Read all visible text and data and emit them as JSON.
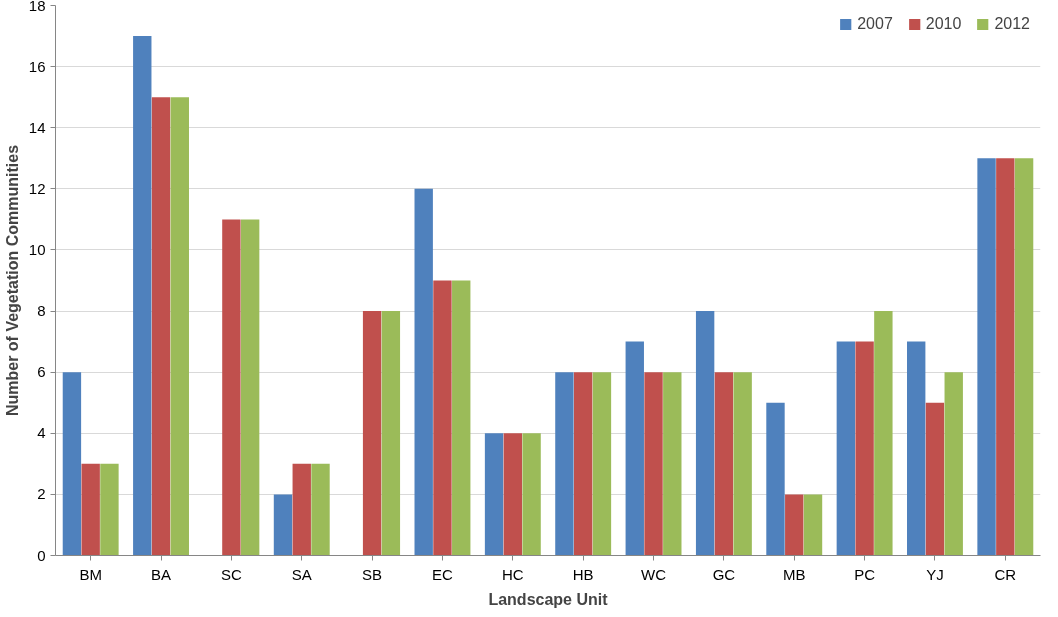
{
  "chart_data": {
    "type": "bar",
    "xlabel": "Landscape Unit",
    "ylabel": "Number of Vegetation Communities",
    "categories": [
      "BM",
      "BA",
      "SC",
      "SA",
      "SB",
      "EC",
      "HC",
      "HB",
      "WC",
      "GC",
      "MB",
      "PC",
      "YJ",
      "CR"
    ],
    "series": [
      {
        "name": "2007",
        "color": "#4f81bd",
        "values": [
          6,
          17,
          0,
          2,
          0,
          12,
          4,
          6,
          7,
          8,
          5,
          7,
          7,
          13
        ]
      },
      {
        "name": "2010",
        "color": "#c0504d",
        "values": [
          3,
          15,
          11,
          3,
          8,
          9,
          4,
          6,
          6,
          6,
          2,
          7,
          5,
          13
        ]
      },
      {
        "name": "2012",
        "color": "#9bbb59",
        "values": [
          3,
          15,
          11,
          3,
          8,
          9,
          4,
          6,
          6,
          6,
          2,
          8,
          6,
          13
        ]
      }
    ],
    "ylim": [
      0,
      18
    ],
    "yticks": [
      0,
      2,
      4,
      6,
      8,
      10,
      12,
      14,
      16,
      18
    ],
    "grid": "y",
    "legend": "top right"
  }
}
